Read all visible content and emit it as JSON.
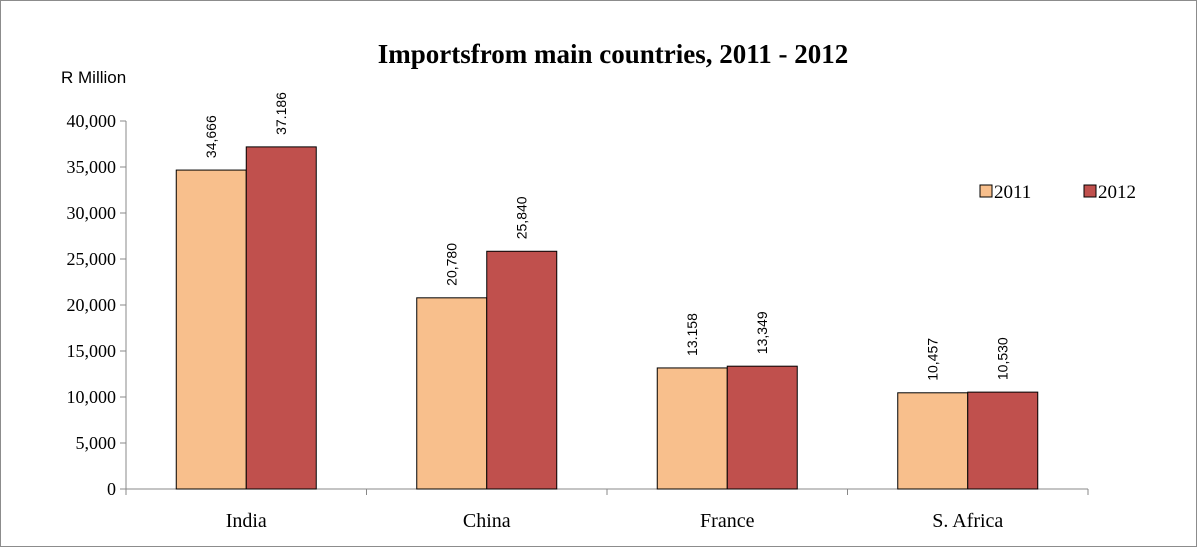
{
  "chart_data": {
    "type": "bar",
    "title": "Importsfrom main countries, 2011 - 2012",
    "ylabel": "R Million",
    "xlabel": "",
    "categories": [
      "India",
      "China",
      "France",
      "S. Africa"
    ],
    "series": [
      {
        "name": "2011",
        "values": [
          34666,
          20780,
          13158,
          10457
        ],
        "labels": [
          "34,666",
          "20,780",
          "13.158",
          "10,457"
        ],
        "color": "#f8bf8c"
      },
      {
        "name": "2012",
        "values": [
          37186,
          25840,
          13349,
          10530
        ],
        "labels": [
          "37.186",
          "25,840",
          "13,349",
          "10,530"
        ],
        "color": "#c0504d"
      }
    ],
    "ylim": [
      0,
      40000
    ],
    "yticks": [
      0,
      5000,
      10000,
      15000,
      20000,
      25000,
      30000,
      35000,
      40000
    ],
    "ytick_labels": [
      "0",
      "5,000",
      "10,000",
      "15,000",
      "20,000",
      "25,000",
      "30,000",
      "35,000",
      "40,000"
    ],
    "grid": false,
    "legend_position": "right"
  }
}
